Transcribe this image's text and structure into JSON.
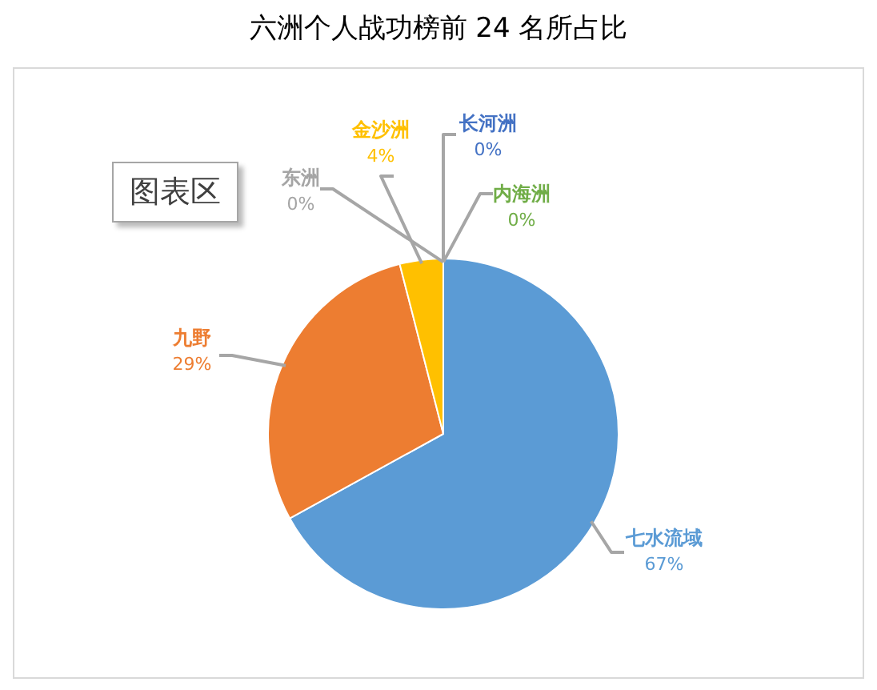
{
  "chart_data": {
    "type": "pie",
    "title": "六洲个人战功榜前 24 名所占比",
    "categories": [
      "七水流域",
      "九野",
      "金沙洲",
      "东洲",
      "长河洲",
      "内海洲"
    ],
    "values": [
      67,
      29,
      4,
      0,
      0,
      0
    ],
    "value_labels": [
      "67%",
      "29%",
      "4%",
      "0%",
      "0%",
      "0%"
    ],
    "colors": [
      "#5b9bd5",
      "#ed7d31",
      "#ffc000",
      "#a5a5a5",
      "#4472c4",
      "#70ad47"
    ],
    "annotations": [
      "图表区"
    ],
    "legend": false
  }
}
